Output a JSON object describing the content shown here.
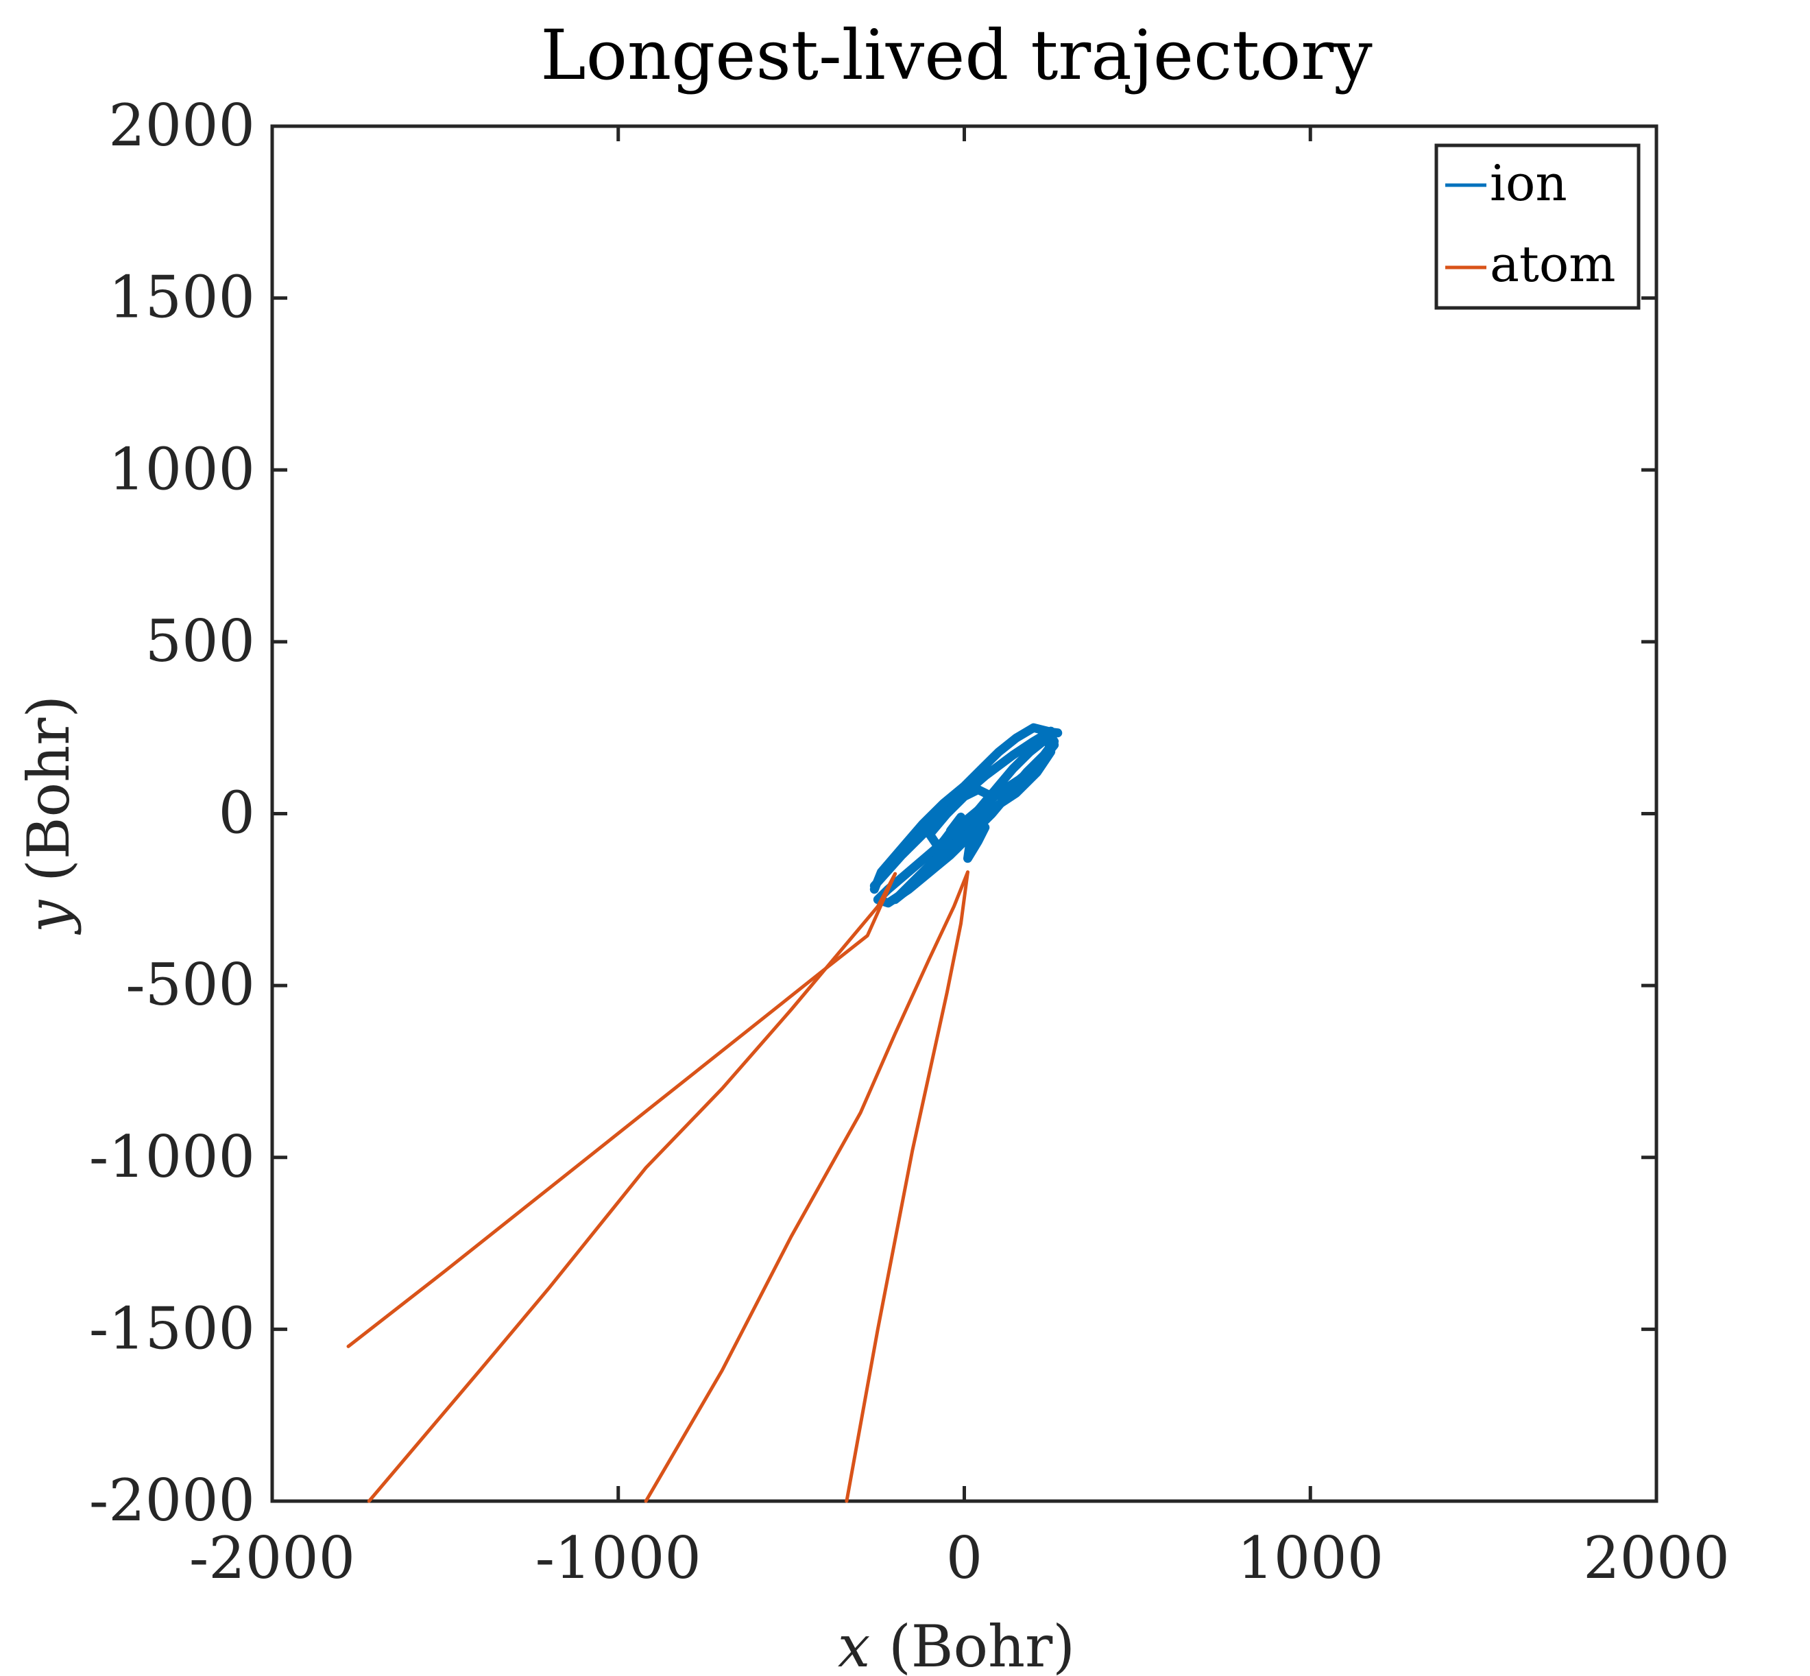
{
  "chart_data": {
    "type": "line",
    "title": "Longest-lived trajectory",
    "xlabel": {
      "var": "x",
      "unit": " (Bohr)"
    },
    "ylabel": {
      "var": "y",
      "unit": " (Bohr)"
    },
    "xlim": [
      -2000,
      2000
    ],
    "ylim": [
      -2000,
      2000
    ],
    "xticks": [
      -2000,
      -1000,
      0,
      1000,
      2000
    ],
    "yticks": [
      -2000,
      -1500,
      -1000,
      -500,
      0,
      500,
      1000,
      1500,
      2000
    ],
    "xtick_labels": [
      "-2000",
      "-1000",
      "0",
      "1000",
      "2000"
    ],
    "ytick_labels": [
      "-2000",
      "-1500",
      "-1000",
      "-500",
      "0",
      "500",
      "1000",
      "1500",
      "2000"
    ],
    "grid": false,
    "legend_position": "top-right",
    "series": [
      {
        "name": "ion",
        "color": "#0072BD",
        "segments": [
          [
            [
              -260,
              -210
            ],
            [
              -180,
              -120
            ],
            [
              -100,
              -40
            ],
            [
              -20,
              40
            ],
            [
              60,
              110
            ],
            [
              140,
              170
            ],
            [
              200,
              210
            ],
            [
              250,
              240
            ],
            [
              260,
              200
            ],
            [
              220,
              150
            ],
            [
              160,
              100
            ],
            [
              100,
              60
            ],
            [
              40,
              10
            ],
            [
              -20,
              -40
            ],
            [
              -80,
              -100
            ],
            [
              -150,
              -160
            ],
            [
              -220,
              -220
            ],
            [
              -250,
              -250
            ],
            [
              -220,
              -260
            ],
            [
              -160,
              -220
            ],
            [
              -100,
              -170
            ],
            [
              -40,
              -120
            ],
            [
              20,
              -60
            ],
            [
              80,
              0
            ],
            [
              130,
              60
            ],
            [
              180,
              120
            ],
            [
              230,
              170
            ],
            [
              260,
              210
            ],
            [
              240,
              240
            ],
            [
              200,
              250
            ],
            [
              150,
              220
            ],
            [
              100,
              180
            ],
            [
              50,
              130
            ],
            [
              0,
              80
            ],
            [
              -60,
              30
            ],
            [
              -120,
              -30
            ],
            [
              -180,
              -100
            ],
            [
              -240,
              -170
            ],
            [
              -260,
              -220
            ]
          ],
          [
            [
              -200,
              -250
            ],
            [
              -140,
              -190
            ],
            [
              -80,
              -130
            ],
            [
              -20,
              -60
            ],
            [
              40,
              10
            ],
            [
              90,
              70
            ],
            [
              140,
              130
            ],
            [
              190,
              180
            ],
            [
              240,
              220
            ],
            [
              250,
              180
            ],
            [
              210,
              120
            ],
            [
              150,
              60
            ],
            [
              90,
              20
            ],
            [
              30,
              -30
            ],
            [
              -30,
              -90
            ],
            [
              -90,
              -150
            ],
            [
              -150,
              -210
            ],
            [
              -200,
              -250
            ]
          ],
          [
            [
              -100,
              -60
            ],
            [
              -50,
              0
            ],
            [
              0,
              50
            ],
            [
              40,
              70
            ],
            [
              80,
              50
            ],
            [
              60,
              0
            ],
            [
              20,
              -50
            ],
            [
              -30,
              -90
            ],
            [
              -80,
              -90
            ],
            [
              -100,
              -60
            ]
          ],
          [
            [
              -60,
              -80
            ],
            [
              -30,
              -40
            ],
            [
              -10,
              -10
            ],
            [
              -40,
              -50
            ]
          ],
          [
            [
              10,
              -130
            ],
            [
              40,
              -80
            ],
            [
              60,
              -40
            ],
            [
              20,
              -60
            ],
            [
              10,
              -130
            ]
          ],
          [
            [
              230,
              240
            ],
            [
              270,
              235
            ]
          ]
        ]
      },
      {
        "name": "atom",
        "color": "#D95319",
        "segments": [
          [
            [
              -1780,
              -1550
            ],
            [
              -1500,
              -1330
            ],
            [
              -1200,
              -1090
            ],
            [
              -900,
              -850
            ],
            [
              -600,
              -610
            ],
            [
              -400,
              -450
            ],
            [
              -280,
              -355
            ],
            [
              -200,
              -175
            ]
          ],
          [
            [
              -1720,
              -2000
            ],
            [
              -1400,
              -1620
            ],
            [
              -1200,
              -1380
            ],
            [
              -920,
              -1030
            ],
            [
              -700,
              -800
            ],
            [
              -500,
              -570
            ],
            [
              -350,
              -390
            ],
            [
              -250,
              -270
            ],
            [
              -200,
              -175
            ]
          ],
          [
            [
              -920,
              -2000
            ],
            [
              -700,
              -1620
            ],
            [
              -500,
              -1230
            ],
            [
              -300,
              -870
            ],
            [
              -200,
              -640
            ],
            [
              -100,
              -420
            ],
            [
              -30,
              -270
            ],
            [
              10,
              -170
            ]
          ],
          [
            [
              -340,
              -2000
            ],
            [
              -250,
              -1500
            ],
            [
              -150,
              -980
            ],
            [
              -50,
              -520
            ],
            [
              -10,
              -320
            ],
            [
              10,
              -170
            ]
          ]
        ]
      }
    ]
  }
}
